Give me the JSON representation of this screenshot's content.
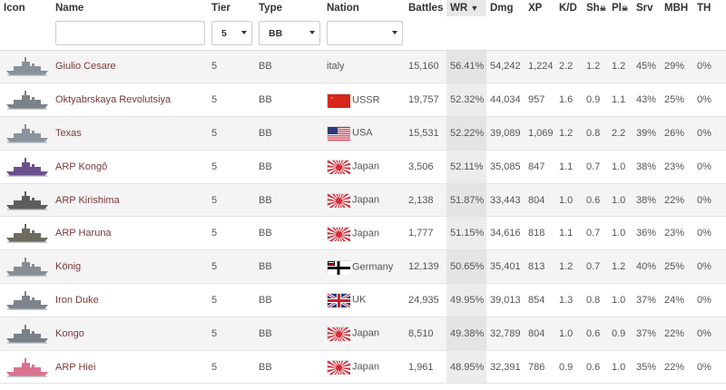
{
  "columns": {
    "icon": "Icon",
    "name": "Name",
    "tier": "Tier",
    "type": "Type",
    "nation": "Nation",
    "battles": "Battles",
    "wr": "WR",
    "wr_arrow": "▼",
    "dmg": "Dmg",
    "xp": "XP",
    "kd": "K/D",
    "sh": "Sh",
    "sh_suffix": "☠",
    "pl": "Pl",
    "pl_suffix": "☠",
    "srv": "Srv",
    "mbh": "MBH",
    "th": "TH"
  },
  "filters": {
    "name_value": "",
    "tier_value": "5",
    "type_value": "BB",
    "nation_value": ""
  },
  "sort": {
    "column": "WR",
    "direction": "descending"
  },
  "rows": [
    {
      "icon": "ship-silhouette-icon",
      "icon_color": "#8a9199",
      "name": "Giulio Cesare",
      "tier": "5",
      "type": "BB",
      "flag": "none",
      "nation": "italy",
      "battles": "15,160",
      "wr": "56.41%",
      "dmg": "54,242",
      "xp": "1,224",
      "kd": "2.2",
      "sh": "1.2",
      "pl": "1.2",
      "srv": "45%",
      "mbh": "29%",
      "th": "0%"
    },
    {
      "icon": "ship-silhouette-icon",
      "icon_color": "#7b828a",
      "name": "Oktyabrskaya Revolutsiya",
      "tier": "5",
      "type": "BB",
      "flag": "ussr",
      "nation": "USSR",
      "battles": "19,757",
      "wr": "52.32%",
      "dmg": "44,034",
      "xp": "957",
      "kd": "1.6",
      "sh": "0.9",
      "pl": "1.1",
      "srv": "43%",
      "mbh": "25%",
      "th": "0%"
    },
    {
      "icon": "ship-silhouette-icon",
      "icon_color": "#8b949c",
      "name": "Texas",
      "tier": "5",
      "type": "BB",
      "flag": "usa",
      "nation": "USA",
      "battles": "15,531",
      "wr": "52.22%",
      "dmg": "39,089",
      "xp": "1,069",
      "kd": "1.2",
      "sh": "0.8",
      "pl": "2.2",
      "srv": "39%",
      "mbh": "26%",
      "th": "0%"
    },
    {
      "icon": "ship-silhouette-icon",
      "icon_color": "#6b4f8e",
      "name": "ARP Kongô",
      "tier": "5",
      "type": "BB",
      "flag": "japan",
      "nation": "Japan",
      "battles": "3,506",
      "wr": "52.11%",
      "dmg": "35,085",
      "xp": "847",
      "kd": "1.1",
      "sh": "0.7",
      "pl": "1.0",
      "srv": "38%",
      "mbh": "23%",
      "th": "0%"
    },
    {
      "icon": "ship-silhouette-icon",
      "icon_color": "#5d5d5d",
      "name": "ARP Kirishima",
      "tier": "5",
      "type": "BB",
      "flag": "japan",
      "nation": "Japan",
      "battles": "2,138",
      "wr": "51.87%",
      "dmg": "33,443",
      "xp": "804",
      "kd": "1.0",
      "sh": "0.6",
      "pl": "1.0",
      "srv": "38%",
      "mbh": "22%",
      "th": "0%"
    },
    {
      "icon": "ship-silhouette-icon",
      "icon_color": "#6d6a5e",
      "name": "ARP Haruna",
      "tier": "5",
      "type": "BB",
      "flag": "japan",
      "nation": "Japan",
      "battles": "1,777",
      "wr": "51.15%",
      "dmg": "34,616",
      "xp": "818",
      "kd": "1.1",
      "sh": "0.7",
      "pl": "1.0",
      "srv": "36%",
      "mbh": "23%",
      "th": "0%"
    },
    {
      "icon": "ship-silhouette-icon",
      "icon_color": "#868d93",
      "name": "König",
      "tier": "5",
      "type": "BB",
      "flag": "germany",
      "nation": "Germany",
      "battles": "12,139",
      "wr": "50.65%",
      "dmg": "35,401",
      "xp": "813",
      "kd": "1.2",
      "sh": "0.7",
      "pl": "1.2",
      "srv": "40%",
      "mbh": "25%",
      "th": "0%"
    },
    {
      "icon": "ship-silhouette-icon",
      "icon_color": "#7d848b",
      "name": "Iron Duke",
      "tier": "5",
      "type": "BB",
      "flag": "uk",
      "nation": "UK",
      "battles": "24,935",
      "wr": "49.95%",
      "dmg": "39,013",
      "xp": "854",
      "kd": "1.3",
      "sh": "0.8",
      "pl": "1.0",
      "srv": "37%",
      "mbh": "24%",
      "th": "0%"
    },
    {
      "icon": "ship-silhouette-icon",
      "icon_color": "#7a8188",
      "name": "Kongo",
      "tier": "5",
      "type": "BB",
      "flag": "japan",
      "nation": "Japan",
      "battles": "8,510",
      "wr": "49.38%",
      "dmg": "32,789",
      "xp": "804",
      "kd": "1.0",
      "sh": "0.6",
      "pl": "0.9",
      "srv": "37%",
      "mbh": "22%",
      "th": "0%"
    },
    {
      "icon": "ship-silhouette-icon",
      "icon_color": "#d9738f",
      "name": "ARP Hiei",
      "tier": "5",
      "type": "BB",
      "flag": "japan",
      "nation": "Japan",
      "battles": "1,961",
      "wr": "48.95%",
      "dmg": "32,391",
      "xp": "786",
      "kd": "0.9",
      "sh": "0.6",
      "pl": "1.0",
      "srv": "35%",
      "mbh": "22%",
      "th": "0%"
    }
  ]
}
